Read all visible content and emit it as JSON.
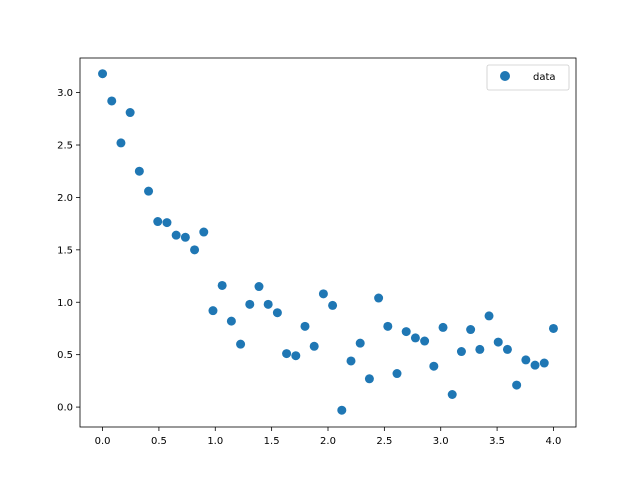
{
  "chart_data": {
    "type": "scatter",
    "title": "",
    "xlabel": "",
    "ylabel": "",
    "xlim": [
      -0.2,
      4.2
    ],
    "ylim": [
      -0.19,
      3.33
    ],
    "grid": false,
    "legend_placement": "top-right",
    "xticks": [
      "0.0",
      "0.5",
      "1.0",
      "1.5",
      "2.0",
      "2.5",
      "3.0",
      "3.5",
      "4.0"
    ],
    "yticks": [
      "0.0",
      "0.5",
      "1.0",
      "1.5",
      "2.0",
      "2.5",
      "3.0"
    ],
    "series": [
      {
        "name": "data",
        "color": "#1f77b4",
        "x": [
          0.0,
          0.0816,
          0.1633,
          0.2449,
          0.3265,
          0.4082,
          0.4898,
          0.5714,
          0.6531,
          0.7347,
          0.8163,
          0.898,
          0.9796,
          1.0612,
          1.1429,
          1.2245,
          1.3061,
          1.3878,
          1.4694,
          1.551,
          1.6327,
          1.7143,
          1.7959,
          1.8776,
          1.9592,
          2.0408,
          2.1224,
          2.2041,
          2.2857,
          2.3673,
          2.449,
          2.5306,
          2.6122,
          2.6939,
          2.7755,
          2.8571,
          2.9388,
          3.0204,
          3.102,
          3.1837,
          3.2653,
          3.3469,
          3.4286,
          3.5102,
          3.5918,
          3.6735,
          3.7551,
          3.8367,
          3.9184,
          4.0
        ],
        "y": [
          3.18,
          2.92,
          2.52,
          2.81,
          2.25,
          2.06,
          1.77,
          1.76,
          1.64,
          1.62,
          1.5,
          1.67,
          0.92,
          1.16,
          0.82,
          0.6,
          0.98,
          1.15,
          0.98,
          0.9,
          0.51,
          0.49,
          0.77,
          0.58,
          1.08,
          0.97,
          -0.03,
          0.44,
          0.61,
          0.27,
          1.04,
          0.77,
          0.32,
          0.72,
          0.66,
          0.63,
          0.39,
          0.76,
          0.12,
          0.53,
          0.74,
          0.55,
          0.87,
          0.62,
          0.55,
          0.21,
          0.45,
          0.4,
          0.42,
          0.75
        ]
      }
    ]
  }
}
